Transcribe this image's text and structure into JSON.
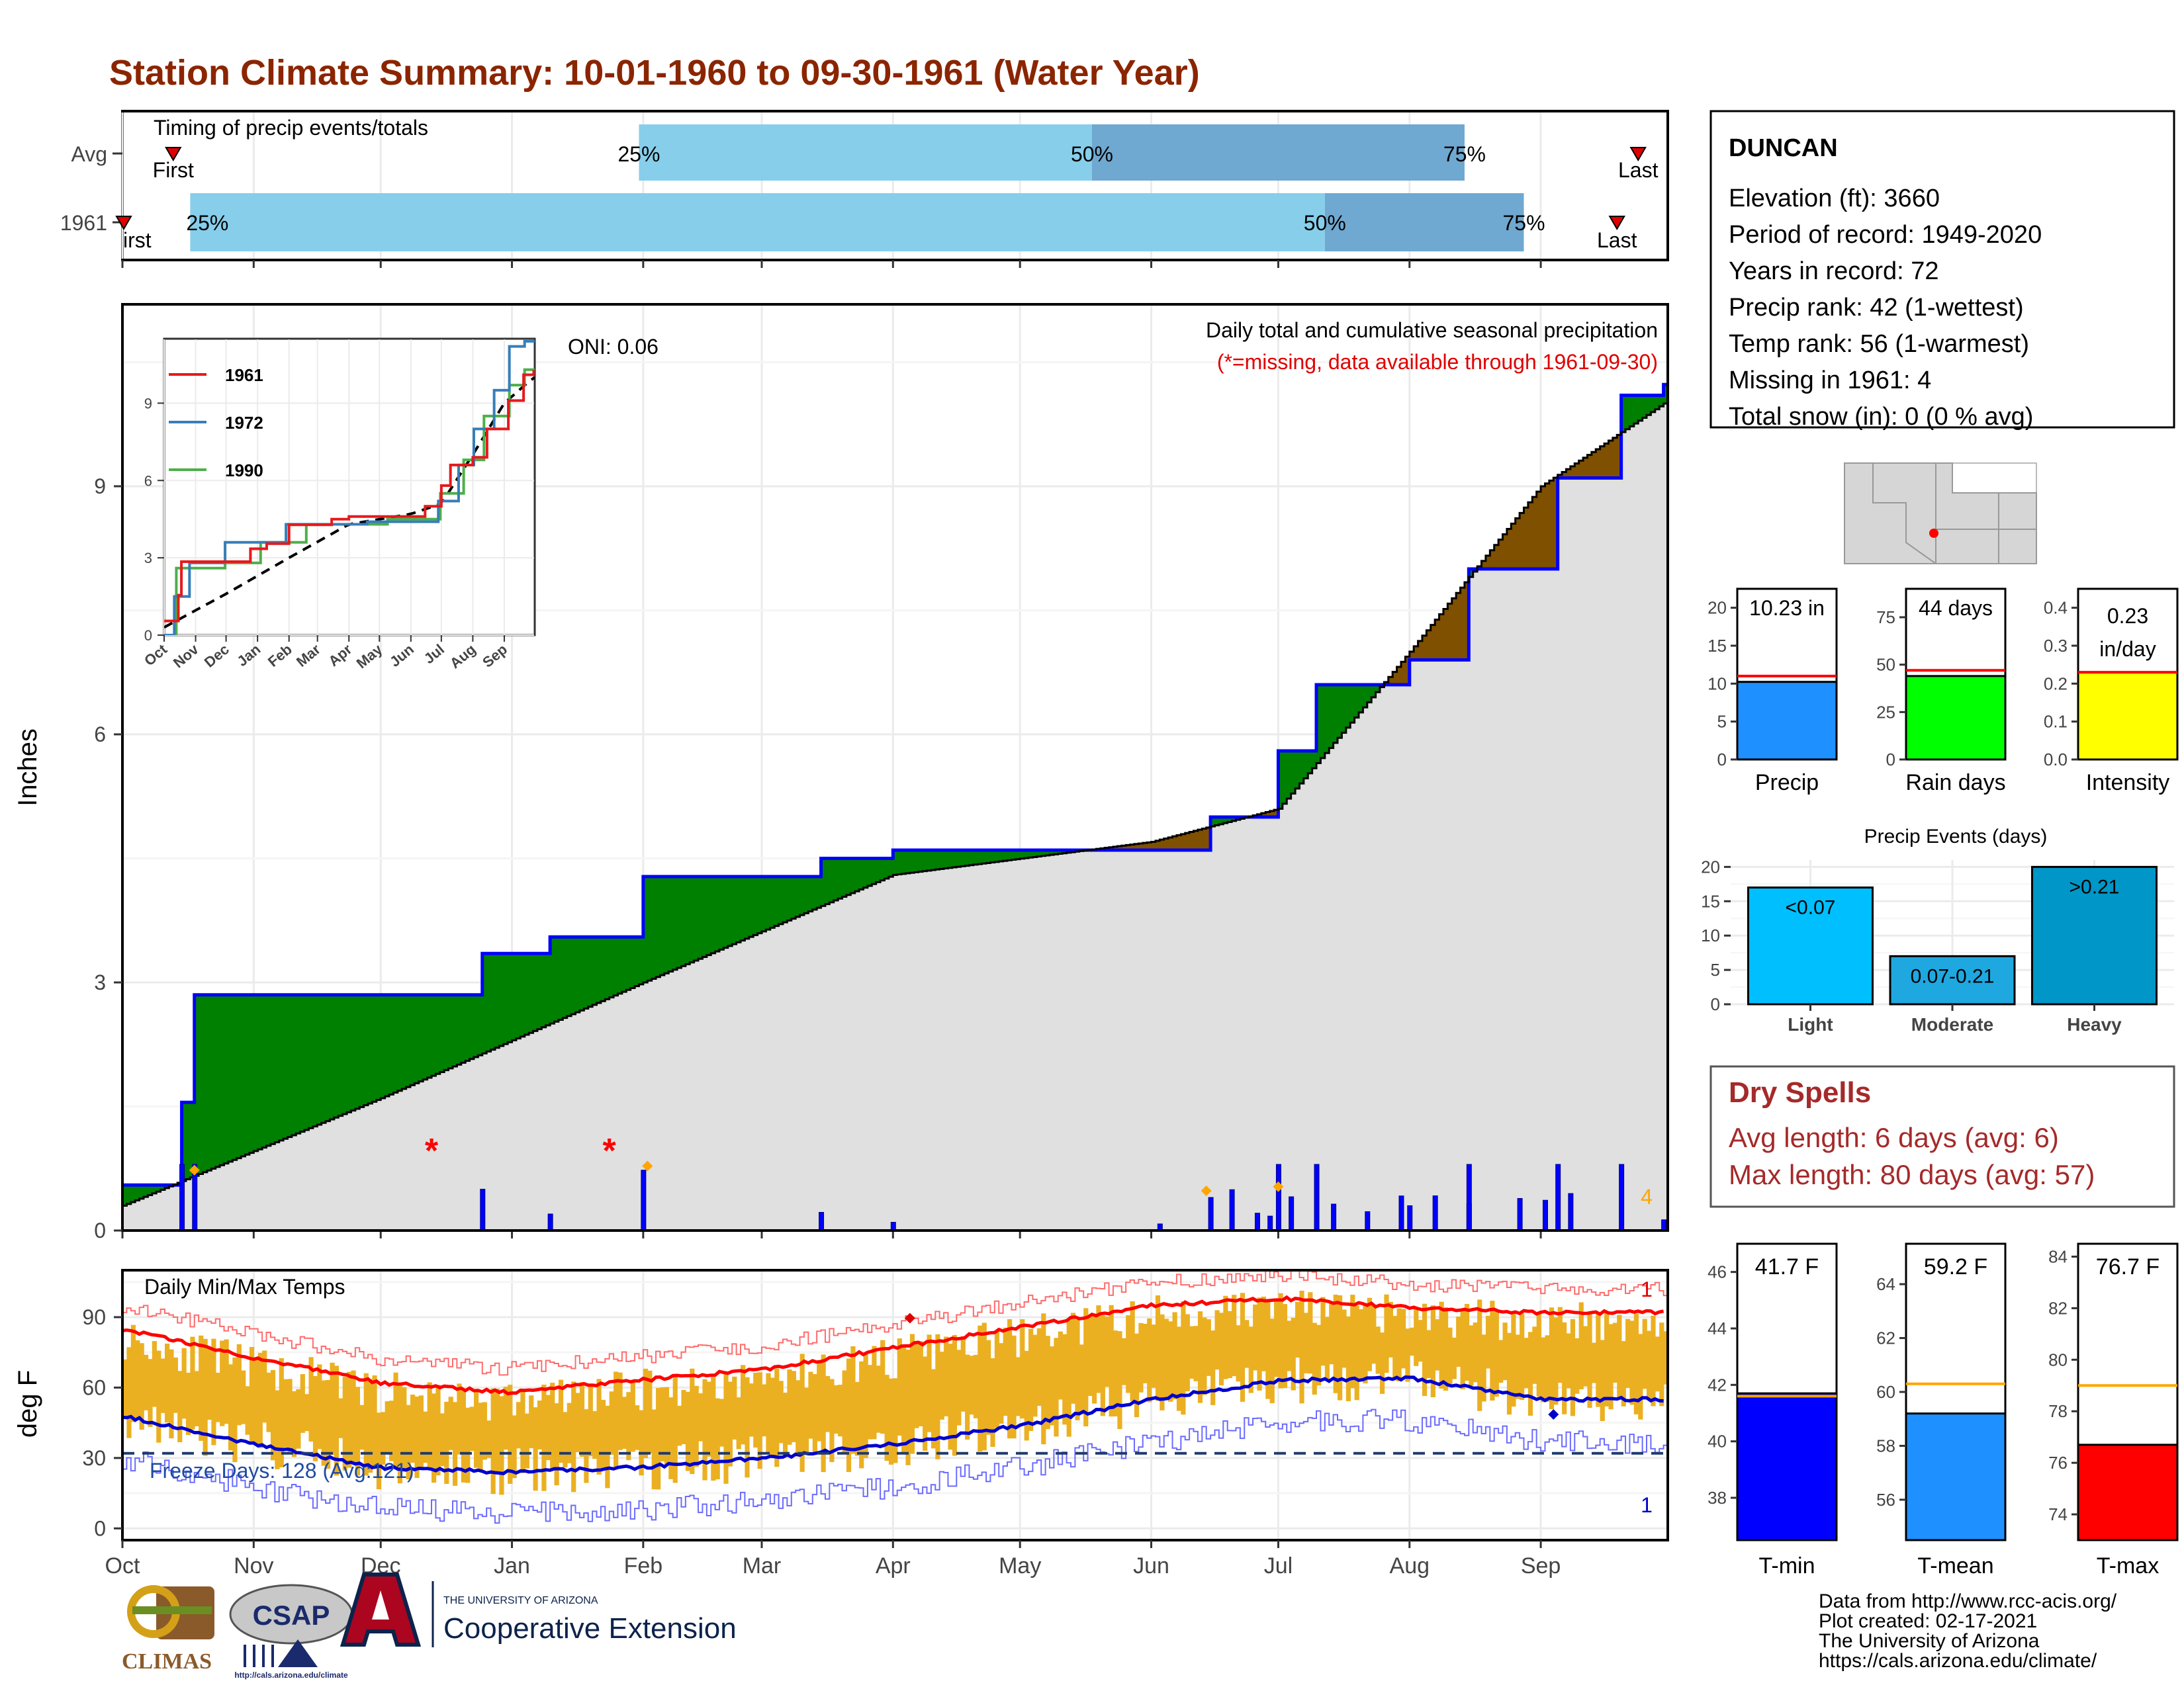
{
  "title": "Station Climate Summary: 10-01-1960 to 09-30-1961 (Water Year)",
  "colors": {
    "title": "#8b2500",
    "light_blue": "#87ceeb",
    "mid_blue": "#6fa8d0",
    "above_avg": "#008000",
    "below_avg": "#7f5000",
    "avg_fill": "#e0e0e0",
    "bars": "#0000ff",
    "tmax": "#ff0000",
    "tmin": "#0000cd",
    "temp_bars": "#ebb021",
    "dry": "#a52a2a"
  },
  "timing_panel": {
    "title": "Timing of precip events/totals",
    "rows": [
      "Avg",
      "1961"
    ],
    "avg": {
      "first_label": "First",
      "last_label": "Last",
      "p25": "25%",
      "p50": "50%",
      "p75": "75%",
      "first_day": 12,
      "p25_day": 122,
      "p50_day": 229,
      "p75_day": 317,
      "last_day": 358
    },
    "y1961": {
      "first_label": "irst",
      "last_label": "Last",
      "p25": "25%",
      "p50": "50%",
      "p75": "75%",
      "first_day": 0,
      "p25_day": 16,
      "p50_day": 284,
      "p75_day": 331,
      "last_day": 353
    }
  },
  "station": {
    "name": "DUNCAN",
    "lines": [
      "Elevation (ft): 3660",
      "Period of record: 1949-2020",
      "Years in record: 72",
      "Precip rank: 42 (1-wettest)",
      "Temp rank: 56 (1-warmest)",
      "Missing in 1961: 4",
      "Total snow (in): 0 (0 % avg)"
    ]
  },
  "precip_panel": {
    "subtitle": "Daily total and cumulative seasonal precipitation",
    "missing_note": "(*=missing, data available through 1961-09-30)",
    "oni": "ONI: 0.06",
    "ylabel": "Inches",
    "yticks": [
      "0",
      "3",
      "6",
      "9"
    ],
    "missing_count": "4"
  },
  "inset": {
    "legend": [
      "1961",
      "1972",
      "1990"
    ],
    "legend_colors": [
      "#e41a1c",
      "#377eb8",
      "#4daf4a"
    ],
    "yticks": [
      "0",
      "3",
      "6",
      "9"
    ],
    "xticks": [
      "Oct",
      "Nov",
      "Dec",
      "Jan",
      "Feb",
      "Mar",
      "Apr",
      "May",
      "Jun",
      "Jul",
      "Aug",
      "Sep"
    ]
  },
  "temp_panel": {
    "title": "Daily Min/Max Temps",
    "ylabel": "deg F",
    "yticks": [
      "0",
      "30",
      "60",
      "90"
    ],
    "freeze": "Freeze Days: 128 (Avg:121)",
    "top_count": "1",
    "bottom_count": "1"
  },
  "months": [
    "Oct",
    "Nov",
    "Dec",
    "Jan",
    "Feb",
    "Mar",
    "Apr",
    "May",
    "Jun",
    "Jul",
    "Aug",
    "Sep"
  ],
  "bar_precip": {
    "label": "Precip",
    "value_text": "10.23 in",
    "yticks": [
      "0",
      "5",
      "10",
      "15",
      "20"
    ]
  },
  "bar_raindays": {
    "label": "Rain days",
    "value_text": "44 days",
    "yticks": [
      "0",
      "25",
      "50",
      "75"
    ]
  },
  "bar_intensity": {
    "label": "Intensity",
    "value_text": "0.23",
    "value_text2": "in/day",
    "yticks": [
      "0.0",
      "0.1",
      "0.2",
      "0.3",
      "0.4"
    ]
  },
  "events": {
    "title": "Precip Events (days)",
    "categories": [
      "Light",
      "Moderate",
      "Heavy"
    ],
    "labels": [
      "<0.07",
      "0.07-0.21",
      ">0.21"
    ],
    "yticks": [
      "0",
      "5",
      "10",
      "15",
      "20"
    ]
  },
  "dry_spells": {
    "title": "Dry Spells",
    "avg": "Avg length: 6 days (avg: 6)",
    "max": "Max length: 80 days (avg: 57)"
  },
  "tmin_bar": {
    "label": "T-min",
    "value_text": "41.7 F",
    "yticks": [
      "38",
      "40",
      "42",
      "44",
      "46"
    ]
  },
  "tmean_bar": {
    "label": "T-mean",
    "value_text": "59.2 F",
    "yticks": [
      "56",
      "58",
      "60",
      "62",
      "64"
    ]
  },
  "tmax_bar": {
    "label": "T-max",
    "value_text": "76.7 F",
    "yticks": [
      "74",
      "76",
      "78",
      "80",
      "82",
      "84"
    ]
  },
  "logos": {
    "climas": "CLIMAS",
    "csap": "CSAP",
    "csap_url": "http://cals.arizona.edu/climate",
    "ua_small": "THE UNIVERSITY OF ARIZONA",
    "ua_big": "Cooperative Extension"
  },
  "credits": [
    "Data from http://www.rcc-acis.org/",
    "Plot created: 02-17-2021",
    "The University of Arizona",
    "https://cals.arizona.edu/climate/"
  ],
  "chart_data": [
    {
      "type": "line",
      "title": "Daily total and cumulative seasonal precipitation",
      "ylabel": "Inches",
      "ylim": [
        0,
        11
      ],
      "series": [
        {
          "name": "1961",
          "x": [
            "1960-10-01",
            "1960-10-15",
            "1960-10-18",
            "1960-12-20",
            "1960-12-25",
            "1961-01-10",
            "1961-02-01",
            "1961-03-15",
            "1961-04-01",
            "1961-06-15",
            "1961-07-01",
            "1961-07-10",
            "1961-08-01",
            "1961-08-15",
            "1961-09-05",
            "1961-09-20",
            "1961-09-30"
          ],
          "y": [
            0.55,
            1.55,
            2.85,
            2.85,
            3.35,
            3.55,
            4.28,
            4.5,
            4.6,
            5.0,
            5.8,
            6.6,
            6.9,
            8.0,
            9.1,
            10.1,
            10.23
          ]
        },
        {
          "name": "Avg",
          "x": [
            "1960-10-01",
            "1960-12-01",
            "1961-02-01",
            "1961-04-01",
            "1961-06-01",
            "1961-07-01",
            "1961-08-01",
            "1961-09-01",
            "1961-09-30"
          ],
          "y": [
            0.3,
            1.6,
            3.0,
            4.3,
            4.7,
            5.1,
            7.0,
            9.0,
            10.0
          ]
        }
      ]
    },
    {
      "type": "bar",
      "title": "Precip Events (days)",
      "categories": [
        "Light",
        "Moderate",
        "Heavy"
      ],
      "values": [
        17,
        7,
        20
      ],
      "ylim": [
        0,
        20
      ]
    },
    {
      "type": "bar",
      "categories": [
        "Precip",
        "Rain days",
        "Intensity"
      ],
      "values": [
        10.23,
        44,
        0.23
      ],
      "averages": [
        11,
        47,
        0.23
      ]
    },
    {
      "type": "bar",
      "categories": [
        "T-min",
        "T-mean",
        "T-max"
      ],
      "values": [
        41.7,
        59.2,
        76.7
      ],
      "averages": [
        41.6,
        60.3,
        79.0
      ]
    },
    {
      "type": "line",
      "title": "Daily Min/Max Temps",
      "ylabel": "deg F",
      "ylim": [
        -5,
        110
      ],
      "series": [
        {
          "name": "Avg max",
          "x": [
            "Oct",
            "Nov",
            "Dec",
            "Jan",
            "Feb",
            "Mar",
            "Apr",
            "May",
            "Jun",
            "Jul",
            "Aug",
            "Sep"
          ],
          "y": [
            85,
            73,
            62,
            58,
            63,
            68,
            77,
            86,
            95,
            98,
            94,
            92
          ]
        },
        {
          "name": "Avg min",
          "x": [
            "Oct",
            "Nov",
            "Dec",
            "Jan",
            "Feb",
            "Mar",
            "Apr",
            "May",
            "Jun",
            "Jul",
            "Aug",
            "Sep"
          ],
          "y": [
            48,
            36,
            26,
            24,
            26,
            30,
            36,
            44,
            55,
            63,
            64,
            55
          ]
        }
      ]
    }
  ]
}
